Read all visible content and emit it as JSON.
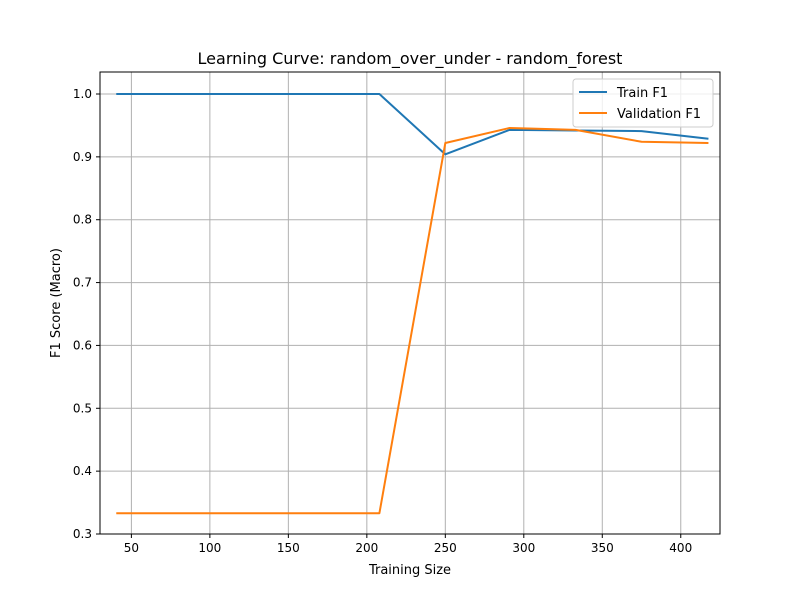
{
  "chart_data": {
    "type": "line",
    "title": "Learning Curve: random_over_under - random_forest",
    "xlabel": "Training Size",
    "ylabel": "F1 Score (Macro)",
    "xlim": [
      30,
      425
    ],
    "ylim": [
      0.3,
      1.035
    ],
    "grid": true,
    "legend_position": "top-right",
    "x_ticks": [
      50,
      100,
      150,
      200,
      250,
      300,
      350,
      400
    ],
    "y_ticks": [
      0.3,
      0.4,
      0.5,
      0.6,
      0.7,
      0.8,
      0.9,
      1.0
    ],
    "x_tick_labels": [
      "50",
      "100",
      "150",
      "200",
      "250",
      "300",
      "350",
      "400"
    ],
    "y_tick_labels": [
      "0.3",
      "0.4",
      "0.5",
      "0.6",
      "0.7",
      "0.8",
      "0.9",
      "1.0"
    ],
    "x": [
      41,
      208,
      250,
      291,
      333,
      375,
      417
    ],
    "series": [
      {
        "name": "Train F1",
        "color": "#1f77b4",
        "values": [
          1.0,
          1.0,
          0.904,
          0.943,
          0.942,
          0.941,
          0.929
        ]
      },
      {
        "name": "Validation F1",
        "color": "#ff7f0e",
        "values": [
          0.333,
          0.333,
          0.922,
          0.946,
          0.943,
          0.924,
          0.922
        ]
      }
    ]
  }
}
